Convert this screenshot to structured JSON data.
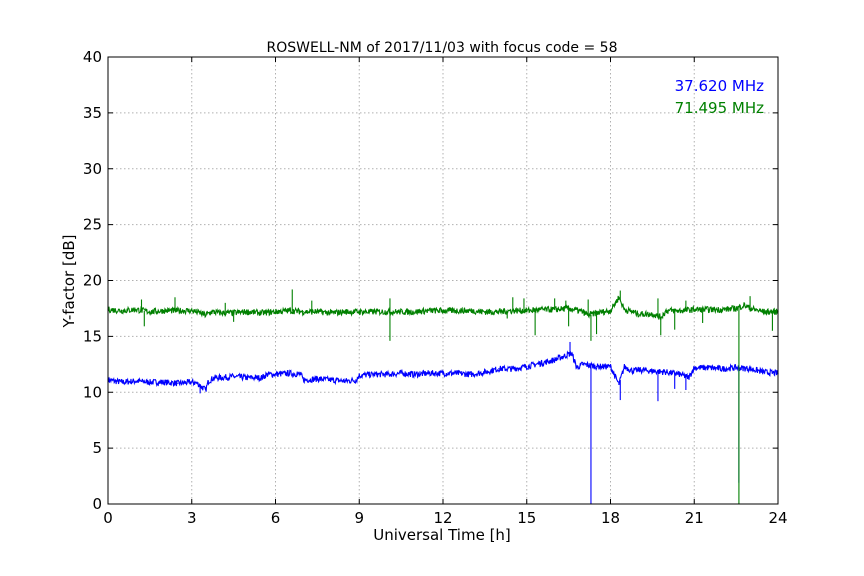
{
  "chart_data": {
    "type": "line",
    "title": "ROSWELL-NM of 2017/11/03 with focus code = 58",
    "xlabel": "Universal Time [h]",
    "ylabel": "Y-factor [dB]",
    "xlim": [
      0,
      24
    ],
    "ylim": [
      0,
      40
    ],
    "xticks": [
      0,
      3,
      6,
      9,
      12,
      15,
      18,
      21,
      24
    ],
    "yticks": [
      0,
      5,
      10,
      15,
      20,
      25,
      30,
      35,
      40
    ],
    "xtick_labels": [
      "0",
      "3",
      "6",
      "9",
      "12",
      "15",
      "18",
      "21",
      "24"
    ],
    "ytick_labels": [
      "0",
      "5",
      "10",
      "15",
      "20",
      "25",
      "30",
      "35",
      "40"
    ],
    "grid": true,
    "legend_position": "top-right",
    "series": [
      {
        "name": "37.620 MHz",
        "color": "#0000ff",
        "x": [
          0,
          0.5,
          1.0,
          1.5,
          2.0,
          2.5,
          3.0,
          3.2,
          3.4,
          3.5,
          3.6,
          3.8,
          4.0,
          4.5,
          5.0,
          5.5,
          5.7,
          6.0,
          6.5,
          6.9,
          7.0,
          7.5,
          8.0,
          8.5,
          8.9,
          9.0,
          9.5,
          10.0,
          10.5,
          11.0,
          11.5,
          12.0,
          12.5,
          13.0,
          13.5,
          14.0,
          14.5,
          15.0,
          15.5,
          16.0,
          16.3,
          16.6,
          16.8,
          17.0,
          17.3,
          17.5,
          18.0,
          18.3,
          18.5,
          18.8,
          19.0,
          19.5,
          20.0,
          20.5,
          20.8,
          21.0,
          21.5,
          22.0,
          22.5,
          23.0,
          23.5,
          24.0
        ],
        "y": [
          11.1,
          10.9,
          11.0,
          10.9,
          10.9,
          10.8,
          10.9,
          10.8,
          10.4,
          10.2,
          11.0,
          11.3,
          11.3,
          11.4,
          11.3,
          11.3,
          11.6,
          11.6,
          11.7,
          11.6,
          11.1,
          11.2,
          11.1,
          11.0,
          11.1,
          11.5,
          11.6,
          11.6,
          11.7,
          11.6,
          11.7,
          11.7,
          11.7,
          11.6,
          11.8,
          12.1,
          12.1,
          12.3,
          12.6,
          12.9,
          13.2,
          13.5,
          12.2,
          12.5,
          12.4,
          12.3,
          12.3,
          10.7,
          12.3,
          11.9,
          12.0,
          11.9,
          11.8,
          11.6,
          11.3,
          12.2,
          12.2,
          12.1,
          12.2,
          12.1,
          11.8,
          11.7
        ],
        "spikes": [
          {
            "x": 3.3,
            "y": 9.9
          },
          {
            "x": 16.55,
            "y": 14.5
          },
          {
            "x": 17.3,
            "y": 0
          },
          {
            "x": 18.35,
            "y": 9.3
          },
          {
            "x": 19.7,
            "y": 9.2
          },
          {
            "x": 20.3,
            "y": 10.3
          },
          {
            "x": 20.7,
            "y": 10.2
          },
          {
            "x": 22.6,
            "y": 1.9
          }
        ]
      },
      {
        "name": "71.495 MHz",
        "color": "#008000",
        "x": [
          0,
          0.5,
          1.0,
          1.5,
          2.0,
          2.5,
          3.0,
          3.3,
          3.5,
          3.7,
          4.0,
          4.5,
          5.0,
          5.5,
          6.0,
          6.5,
          7.0,
          7.5,
          8.0,
          8.5,
          9.0,
          9.5,
          10.0,
          10.5,
          11.0,
          11.5,
          12.0,
          12.5,
          13.0,
          13.5,
          14.0,
          14.5,
          15.0,
          15.5,
          16.0,
          16.5,
          17.0,
          17.2,
          17.5,
          18.0,
          18.3,
          18.5,
          18.8,
          19.0,
          19.5,
          19.8,
          20.0,
          20.5,
          21.0,
          21.5,
          22.0,
          22.5,
          22.8,
          23.0,
          23.5,
          24.0
        ],
        "y": [
          17.4,
          17.3,
          17.4,
          17.2,
          17.3,
          17.3,
          17.3,
          17.1,
          16.9,
          17.2,
          17.1,
          17.1,
          17.2,
          17.1,
          17.2,
          17.3,
          17.2,
          17.2,
          17.1,
          17.2,
          17.2,
          17.2,
          17.2,
          17.2,
          17.2,
          17.3,
          17.3,
          17.3,
          17.3,
          17.2,
          17.2,
          17.3,
          17.3,
          17.4,
          17.4,
          17.5,
          17.2,
          16.9,
          17.1,
          17.3,
          18.5,
          17.4,
          17.2,
          17.0,
          17.0,
          16.7,
          17.3,
          17.3,
          17.4,
          17.4,
          17.4,
          17.5,
          17.8,
          17.5,
          17.2,
          17.2
        ],
        "spikes": [
          {
            "x": 1.2,
            "y": 18.3
          },
          {
            "x": 1.3,
            "y": 15.9
          },
          {
            "x": 2.4,
            "y": 18.5
          },
          {
            "x": 4.2,
            "y": 18.0
          },
          {
            "x": 4.5,
            "y": 16.3
          },
          {
            "x": 6.6,
            "y": 19.2
          },
          {
            "x": 7.3,
            "y": 18.2
          },
          {
            "x": 10.1,
            "y": 18.4
          },
          {
            "x": 10.1,
            "y": 14.6
          },
          {
            "x": 14.3,
            "y": 16.6
          },
          {
            "x": 14.5,
            "y": 18.5
          },
          {
            "x": 14.9,
            "y": 18.4
          },
          {
            "x": 15.3,
            "y": 15.1
          },
          {
            "x": 16.0,
            "y": 18.4
          },
          {
            "x": 16.4,
            "y": 18.2
          },
          {
            "x": 16.5,
            "y": 15.9
          },
          {
            "x": 17.2,
            "y": 18.3
          },
          {
            "x": 17.3,
            "y": 14.6
          },
          {
            "x": 17.5,
            "y": 15.2
          },
          {
            "x": 18.35,
            "y": 19.1
          },
          {
            "x": 19.7,
            "y": 18.4
          },
          {
            "x": 19.8,
            "y": 15.1
          },
          {
            "x": 20.3,
            "y": 15.6
          },
          {
            "x": 20.7,
            "y": 18.2
          },
          {
            "x": 21.3,
            "y": 16.2
          },
          {
            "x": 22.6,
            "y": 0
          },
          {
            "x": 23.0,
            "y": 18.6
          },
          {
            "x": 23.8,
            "y": 15.5
          }
        ]
      }
    ]
  }
}
